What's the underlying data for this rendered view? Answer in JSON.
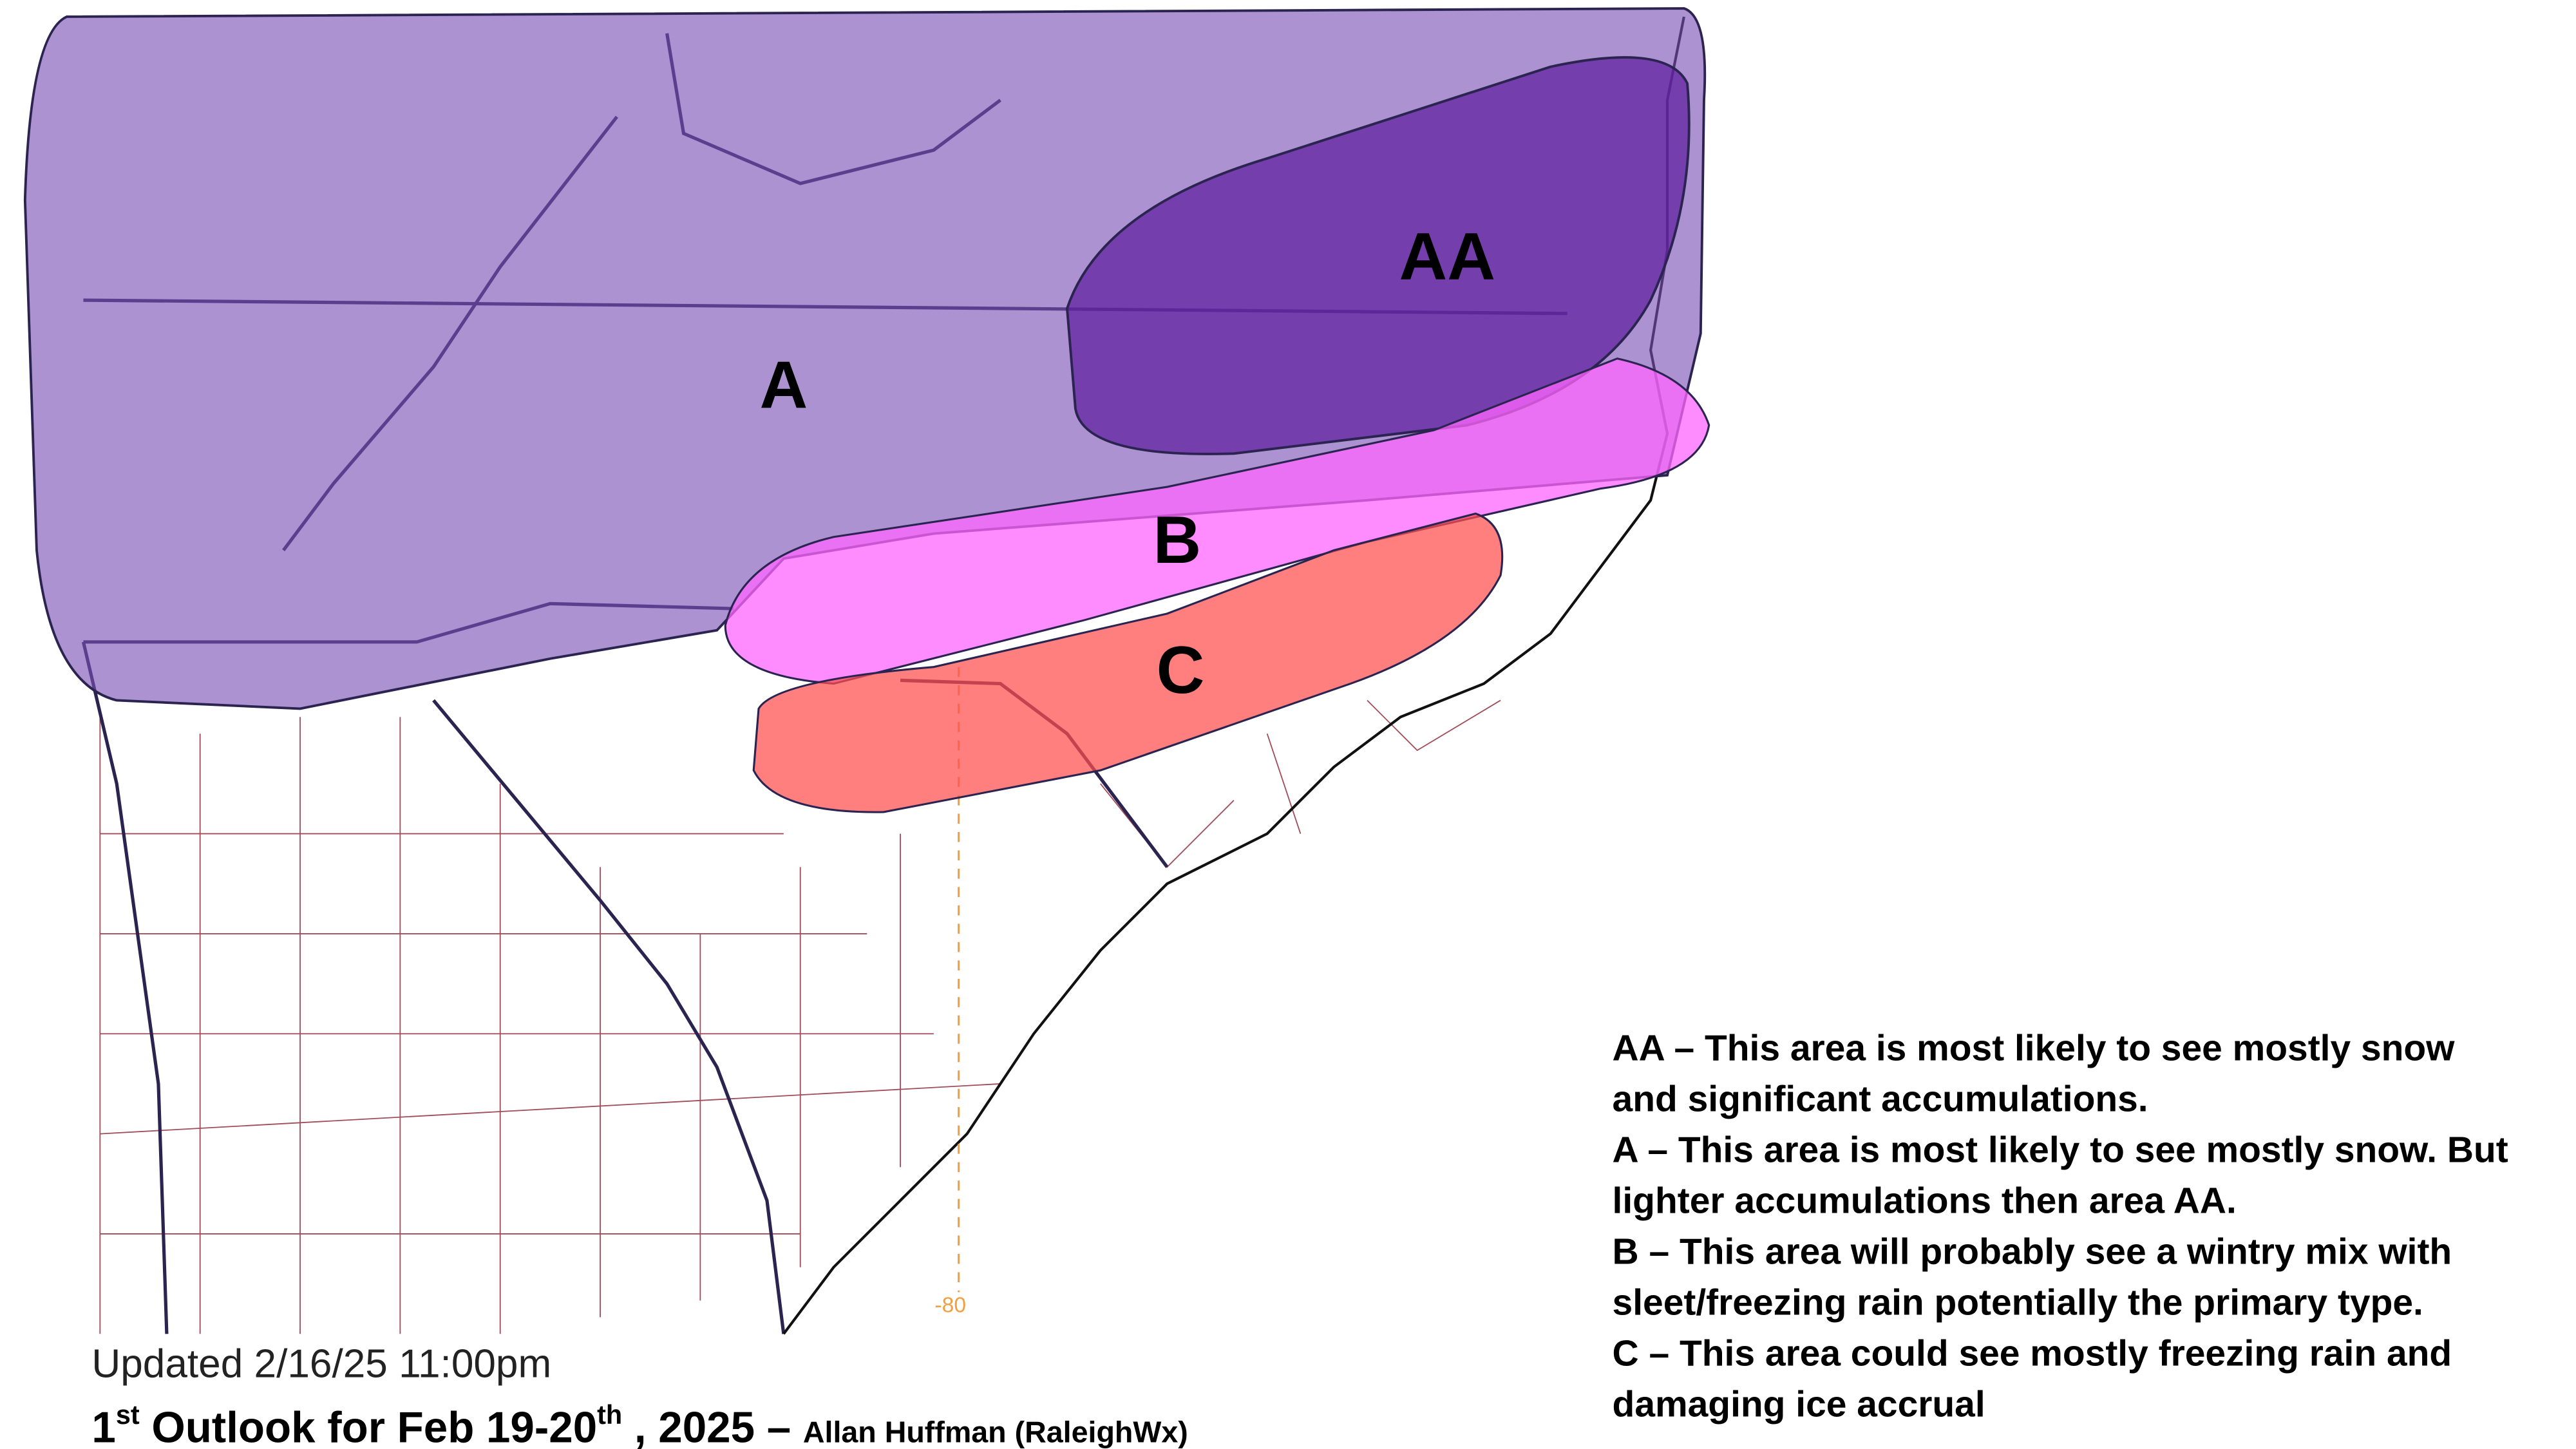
{
  "map": {
    "zones": [
      {
        "label": "AA"
      },
      {
        "label": "A"
      },
      {
        "label": "B"
      },
      {
        "label": "C"
      }
    ],
    "longitude_label": "-80"
  },
  "footer": {
    "updated": "Updated 2/16/25 11:00pm",
    "title": {
      "part_1": "1",
      "sup_1": "st",
      "part_2": " Outlook for Feb 19-20",
      "sup_2": "th",
      "part_3": " , 2025 – ",
      "author": "Allan Huffman (RaleighWx)"
    }
  },
  "legend": {
    "entries": [
      {
        "lines": [
          "AA – This area is most likely to see mostly snow",
          "and significant accumulations."
        ]
      },
      {
        "lines": [
          "A – This area is most likely to see mostly snow. But",
          "lighter accumulations then area AA."
        ]
      },
      {
        "lines": [
          "B – This area will probably see a wintry mix with",
          "sleet/freezing rain potentially the primary type."
        ]
      },
      {
        "lines": [
          "C – This area could see mostly freezing rain and",
          "damaging ice accrual"
        ]
      }
    ]
  }
}
